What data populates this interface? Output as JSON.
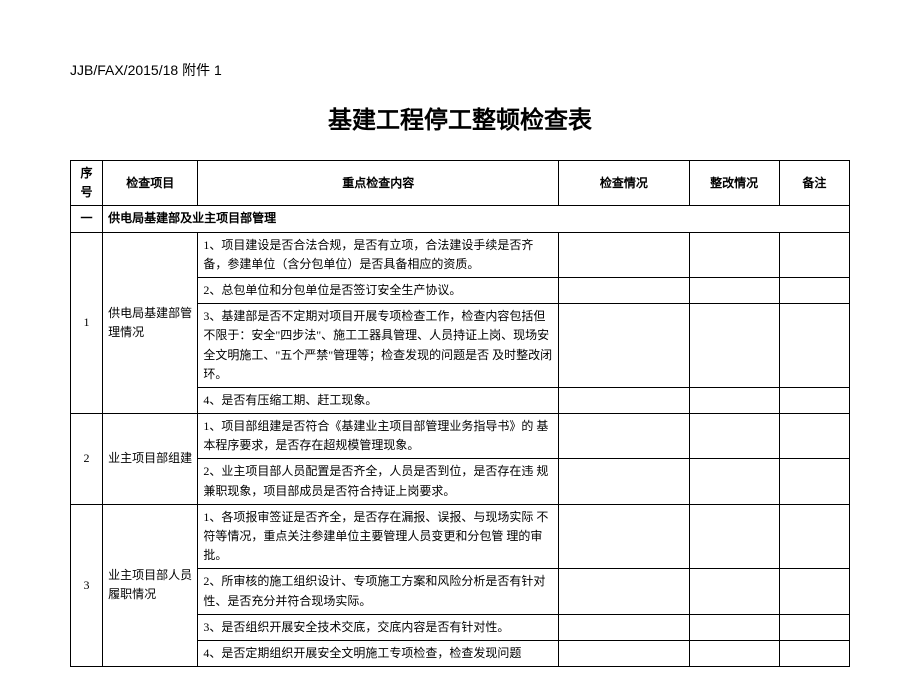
{
  "header": "JJB/FAX/2015/18 附件 1",
  "title": "基建工程停工整顿检查表",
  "columns": {
    "num": "序号",
    "item": "检查项目",
    "content": "重点检查内容",
    "check": "检查情况",
    "rectify": "整改情况",
    "remark": "备注"
  },
  "section1": {
    "num": "一",
    "title": "供电局基建部及业主项目部管理"
  },
  "row1": {
    "num": "1",
    "item": "供电局基建部管理情况",
    "c1": "1、项目建设是否合法合规，是否有立项，合法建设手续是否齐备，参建单位（含分包单位）是否具备相应的资质。",
    "c2": "2、总包单位和分包单位是否签订安全生产协议。",
    "c3": "3、基建部是否不定期对项目开展专项检查工作，检查内容包括但不限于：安全\"四步法\"、施工工器具管理、人员持证上岗、现场安全文明施工、\"五个严禁\"管理等；检查发现的问题是否 及时整改闭环。",
    "c4": "4、是否有压缩工期、赶工现象。"
  },
  "row2": {
    "num": "2",
    "item": "业主项目部组建",
    "c1": "1、项目部组建是否符合《基建业主项目部管理业务指导书》的 基本程序要求，是否存在超规模管理现象。",
    "c2": "2、业主项目部人员配置是否齐全，人员是否到位，是否存在违 规兼职现象，项目部成员是否符合持证上岗要求。"
  },
  "row3": {
    "num": "3",
    "item": "业主项目部人员履职情况",
    "c1": "1、各项报审签证是否齐全，是否存在漏报、误报、与现场实际 不符等情况，重点关注参建单位主要管理人员变更和分包管 理的审批。",
    "c2": "2、所审核的施工组织设计、专项施工方案和风险分析是否有针对性、是否充分并符合现场实际。",
    "c3": "3、是否组织开展安全技术交底，交底内容是否有针对性。",
    "c4": "4、是否定期组织开展安全文明施工专项检查，检查发现问题"
  }
}
